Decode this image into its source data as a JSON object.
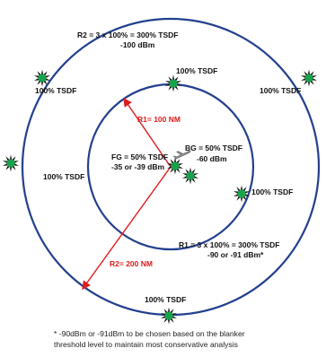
{
  "colors": {
    "circle": "#23408e",
    "radius_line": "#e01b1b",
    "station_fill": "#17a34a",
    "station_spikes": "#111111",
    "background": "#ffffff"
  },
  "labels": {
    "r2_title": "R2 = 3 x 100% = 300% TSDF",
    "r2_power": "-100 dBm",
    "top_inner": "100% TSDF",
    "left_outer": "100% TSDF",
    "right_outer": "100% TSDF",
    "r1_radius": "R1= 100 NM",
    "bg_title": "BG = 50% TSDF",
    "bg_power": "-60 dBm",
    "fg_title": "FG = 50% TSDF",
    "fg_power": "-35 or -39 dBm",
    "left_mid": "100% TSDF",
    "right_mid": "100% TSDF",
    "r1_title": "R1 = 3 x 100% = 300% TSDF",
    "r1_power": "-90 or -91 dBm*",
    "r2_radius": "R2= 200 NM",
    "bottom": "100% TSDF"
  },
  "footnote": {
    "line1": "* -90dBm or -91dBm to be chosen based on the blanker",
    "line2": "threshold level to maintain most conservative analysis"
  },
  "icons": {
    "station": "green-starburst-icon",
    "aircraft": "aircraft-icon"
  }
}
